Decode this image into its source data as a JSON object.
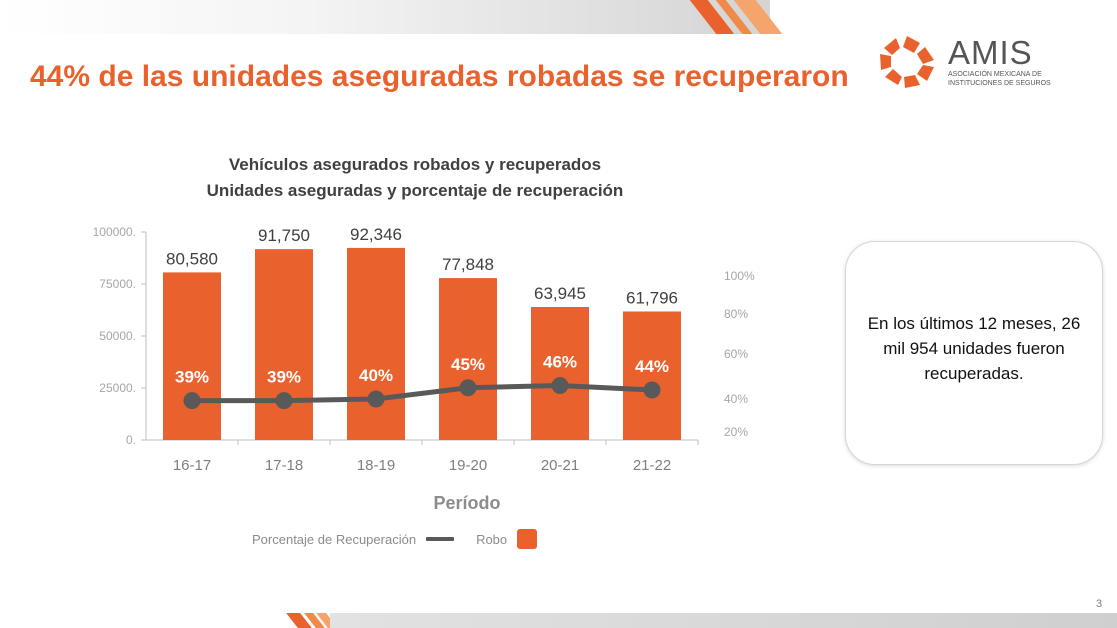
{
  "slide": {
    "headline": "44% de las unidades aseguradas robadas se recuperaron",
    "page_number": "3"
  },
  "logo": {
    "name": "AMIS",
    "subtitle": "Asociación Mexicana de Instituciones de Seguros",
    "icon": "amis-pinwheel-icon",
    "color": "#e9622d"
  },
  "chart_data": {
    "type": "bar",
    "title": [
      "Vehículos asegurados robados y recuperados",
      "Unidades aseguradas y porcentaje de recuperación"
    ],
    "xlabel": "Período",
    "categories": [
      "16-17",
      "17-18",
      "18-19",
      "19-20",
      "20-21",
      "21-22"
    ],
    "series": [
      {
        "name": "Robo",
        "type": "bar",
        "axis": "left",
        "color": "#e9622d",
        "values": [
          80580,
          91750,
          92346,
          77848,
          63945,
          61796
        ],
        "labels": [
          "80,580",
          "91,750",
          "92,346",
          "77,848",
          "63,945",
          "61,796"
        ]
      },
      {
        "name": "Porcentaje de Recuperación",
        "type": "line",
        "axis": "right",
        "color": "#595959",
        "values": [
          39,
          39,
          40,
          45,
          46,
          44
        ],
        "labels": [
          "39%",
          "39%",
          "40%",
          "45%",
          "46%",
          "44%"
        ]
      }
    ],
    "y_left": {
      "ylim": [
        0,
        100000
      ],
      "ticks": [
        0,
        25000,
        50000,
        75000,
        100000
      ],
      "tick_labels": [
        "0.",
        "25000.",
        "50000.",
        "75000.",
        "100000."
      ]
    },
    "y_right": {
      "ticks": [
        20,
        40,
        60,
        80,
        100
      ],
      "tick_labels": [
        "20%",
        "40%",
        "60%",
        "80%",
        "100%"
      ]
    },
    "grid": false,
    "legend_position": "bottom"
  },
  "callout": {
    "text": "En los últimos 12 meses, 26 mil 954 unidades fueron recuperadas."
  }
}
